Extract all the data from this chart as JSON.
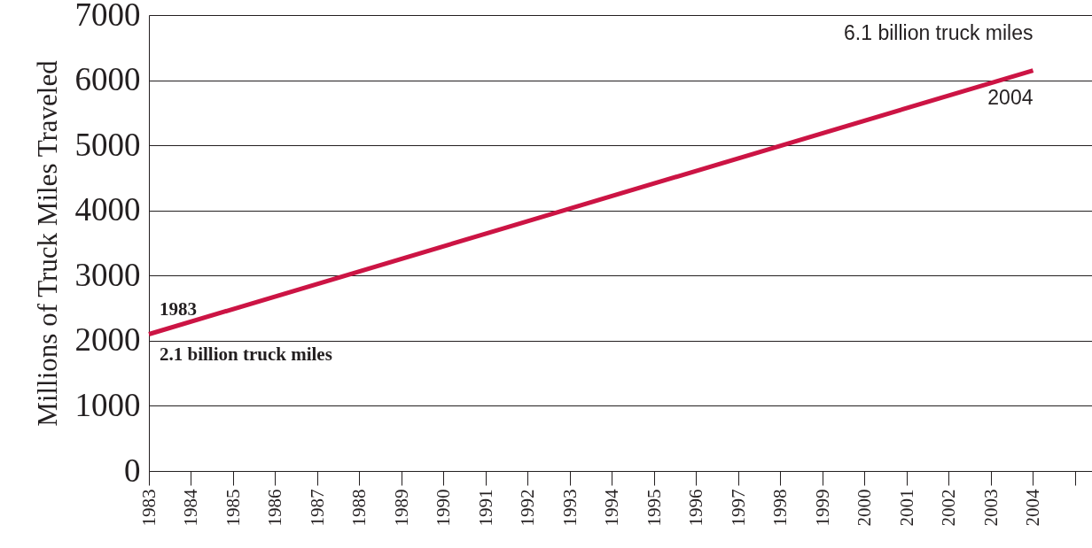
{
  "chart_data": {
    "type": "line",
    "ylabel": "Millions of Truck Miles Traveled",
    "x": [
      1983,
      2004
    ],
    "series": [
      {
        "color": "#cc1444",
        "values": [
          2100,
          6150
        ]
      }
    ],
    "xlim": [
      1983,
      2005.4
    ],
    "xticks": [
      1983,
      1984,
      1985,
      1986,
      1987,
      1988,
      1989,
      1990,
      1991,
      1992,
      1993,
      1994,
      1995,
      1996,
      1997,
      1998,
      1999,
      2000,
      2001,
      2002,
      2003,
      2004,
      {
        "value": 2005,
        "label": null
      }
    ],
    "ylim": [
      0,
      7000
    ],
    "yticks": [
      0,
      1000,
      2000,
      3000,
      4000,
      5000,
      6000,
      7000
    ],
    "grid": "y",
    "marker": "none",
    "line_style": "solid",
    "annotations": [
      "1983",
      "2.1 billion truck miles",
      "6.1 billion truck miles",
      "2004"
    ]
  }
}
